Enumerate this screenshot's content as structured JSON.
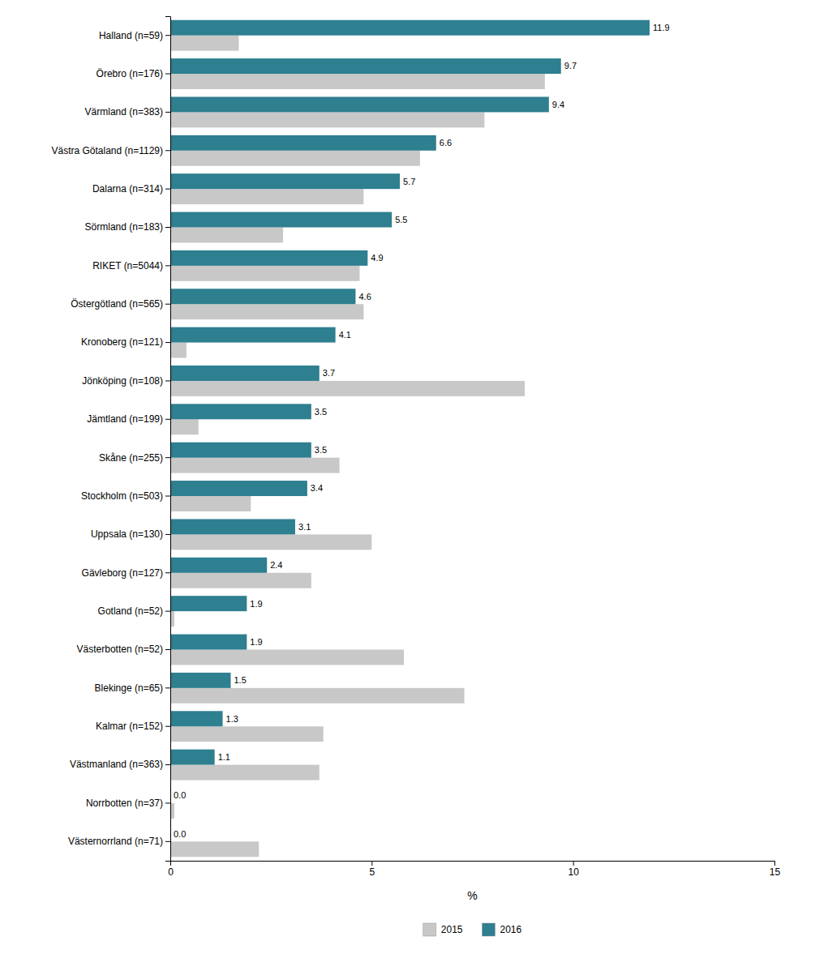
{
  "chart_data": {
    "type": "bar",
    "orientation": "horizontal",
    "categories": [
      "Halland (n=59)",
      "Örebro (n=176)",
      "Värmland (n=383)",
      "Västra Götaland (n=1129)",
      "Dalarna (n=314)",
      "Sörmland (n=183)",
      "RIKET (n=5044)",
      "Östergötland (n=565)",
      "Kronoberg (n=121)",
      "Jönköping (n=108)",
      "Jämtland (n=199)",
      "Skåne (n=255)",
      "Stockholm (n=503)",
      "Uppsala (n=130)",
      "Gävleborg (n=127)",
      "Gotland (n=52)",
      "Västerbotten (n=52)",
      "Blekinge (n=65)",
      "Kalmar (n=152)",
      "Västmanland (n=363)",
      "Norrbotten (n=37)",
      "Västernorrland (n=71)"
    ],
    "series": [
      {
        "name": "2015",
        "color": "#c8c8c8",
        "values": [
          1.7,
          9.3,
          7.8,
          6.2,
          4.8,
          2.8,
          4.7,
          4.8,
          0.4,
          8.8,
          0.7,
          4.2,
          2.0,
          5.0,
          3.5,
          0.1,
          5.8,
          7.3,
          3.8,
          3.7,
          0.1,
          2.2
        ]
      },
      {
        "name": "2016",
        "color": "#2e7f8f",
        "values": [
          11.9,
          9.7,
          9.4,
          6.6,
          5.7,
          5.5,
          4.9,
          4.6,
          4.1,
          3.7,
          3.5,
          3.5,
          3.4,
          3.1,
          2.4,
          1.9,
          1.9,
          1.5,
          1.3,
          1.1,
          0.0,
          0.0
        ],
        "data_labels": true,
        "value_labels": [
          "11.9",
          "9.7",
          "9.4",
          "6.6",
          "5.7",
          "5.5",
          "4.9",
          "4.6",
          "4.1",
          "3.7",
          "3.5",
          "3.5",
          "3.4",
          "3.1",
          "2.4",
          "1.9",
          "1.9",
          "1.5",
          "1.3",
          "1.1",
          "0.0",
          "0.0"
        ]
      }
    ],
    "xlabel": "%",
    "xlim": [
      0,
      15
    ],
    "xticks": [
      0,
      5,
      10,
      15
    ],
    "grid": false,
    "legend": "bottom"
  }
}
